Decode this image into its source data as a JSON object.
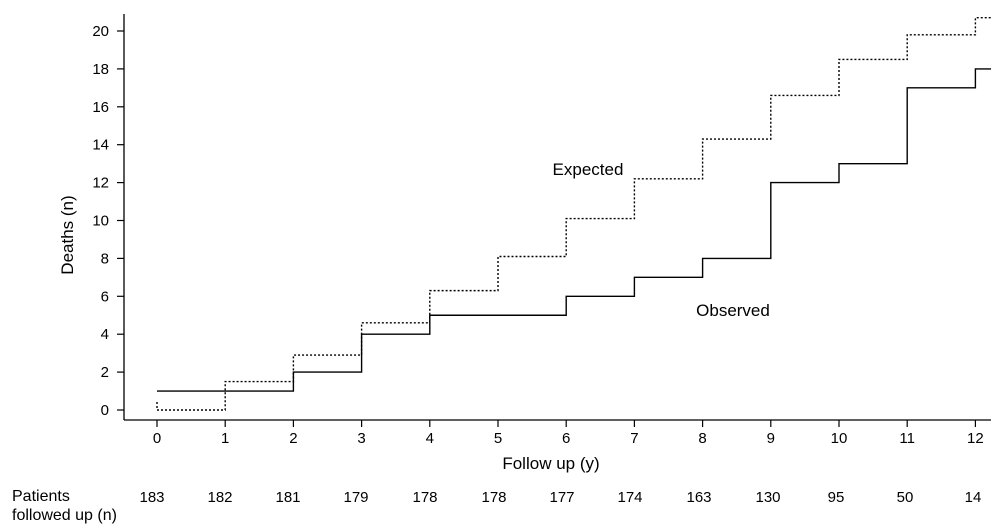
{
  "chart_data": {
    "type": "line",
    "step": true,
    "xlabel": "Follow up (y)",
    "ylabel": "Deaths (n)",
    "xlim": [
      -0.5,
      12.25
    ],
    "ylim": [
      -0.5,
      21.2
    ],
    "x_ticks": [
      "0",
      "1",
      "2",
      "3",
      "4",
      "5",
      "6",
      "7",
      "8",
      "9",
      "10",
      "11",
      "12"
    ],
    "y_ticks": [
      "0",
      "2",
      "4",
      "6",
      "8",
      "10",
      "12",
      "14",
      "16",
      "18",
      "20"
    ],
    "grid": false,
    "series": [
      {
        "name": "Expected",
        "style": "dotted",
        "x": [
          0,
          1,
          2,
          3,
          4,
          5,
          6,
          7,
          8,
          9,
          10,
          11,
          12,
          12.25
        ],
        "y": [
          0,
          1.5,
          2.9,
          4.6,
          6.3,
          8.1,
          10.1,
          12.2,
          14.3,
          16.6,
          18.5,
          19.8,
          20.7,
          20.7
        ]
      },
      {
        "name": "Observed",
        "style": "solid",
        "x": [
          1,
          2,
          3,
          4,
          5,
          6,
          7,
          8,
          9,
          10,
          11,
          12,
          12.25
        ],
        "y": [
          1,
          2,
          4,
          5,
          5,
          6,
          7,
          8,
          12,
          13,
          17,
          18,
          18
        ]
      }
    ],
    "patients_label": [
      "Patients",
      "followed up (n)"
    ],
    "patients_followed_up": [
      "183",
      "182",
      "181",
      "179",
      "178",
      "178",
      "177",
      "174",
      "163",
      "130",
      "95",
      "50",
      "14"
    ]
  }
}
